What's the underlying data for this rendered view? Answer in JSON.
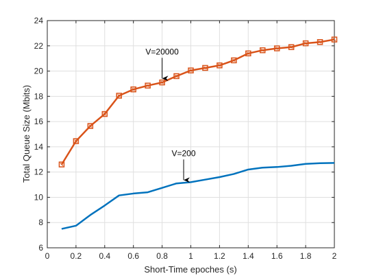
{
  "chart_data": {
    "type": "line",
    "title": "",
    "xlabel": "Short-Time epoches (s)",
    "ylabel": "Total Queue Size (Mbits)",
    "xlim": [
      0,
      2
    ],
    "ylim": [
      6,
      24
    ],
    "xticks": [
      0,
      0.2,
      0.4,
      0.6,
      0.8,
      1,
      1.2,
      1.4,
      1.6,
      1.8,
      2
    ],
    "xtick_labels": [
      "0",
      "0.2",
      "0.4",
      "0.6",
      "0.8",
      "1",
      "1.2",
      "1.4",
      "1.6",
      "1.8",
      "2"
    ],
    "yticks": [
      6,
      8,
      10,
      12,
      14,
      16,
      18,
      20,
      22,
      24
    ],
    "ytick_labels": [
      "6",
      "8",
      "10",
      "12",
      "14",
      "16",
      "18",
      "20",
      "22",
      "24"
    ],
    "grid": true,
    "series": [
      {
        "name": "V=20000",
        "color": "#D95319",
        "marker": "square",
        "x": [
          0.1,
          0.2,
          0.3,
          0.4,
          0.5,
          0.6,
          0.7,
          0.8,
          0.9,
          1.0,
          1.1,
          1.2,
          1.3,
          1.4,
          1.5,
          1.6,
          1.7,
          1.8,
          1.9,
          2.0
        ],
        "y": [
          12.6,
          14.45,
          15.65,
          16.6,
          18.05,
          18.55,
          18.85,
          19.1,
          19.6,
          20.05,
          20.25,
          20.45,
          20.85,
          21.4,
          21.65,
          21.8,
          21.9,
          22.2,
          22.3,
          22.5
        ]
      },
      {
        "name": "V=200",
        "color": "#0072BD",
        "marker": "none",
        "x": [
          0.1,
          0.2,
          0.3,
          0.4,
          0.5,
          0.6,
          0.7,
          0.8,
          0.9,
          1.0,
          1.1,
          1.2,
          1.3,
          1.4,
          1.5,
          1.6,
          1.7,
          1.8,
          1.9,
          2.0
        ],
        "y": [
          7.5,
          7.75,
          8.6,
          9.35,
          10.15,
          10.3,
          10.4,
          10.75,
          11.1,
          11.2,
          11.4,
          11.6,
          11.85,
          12.2,
          12.35,
          12.4,
          12.5,
          12.65,
          12.7,
          12.72
        ]
      }
    ],
    "annotations": [
      {
        "text": "V=20000",
        "arrow_to": [
          0.8,
          19.2
        ]
      },
      {
        "text": "V=200",
        "arrow_to": [
          0.95,
          11.15
        ]
      }
    ]
  }
}
